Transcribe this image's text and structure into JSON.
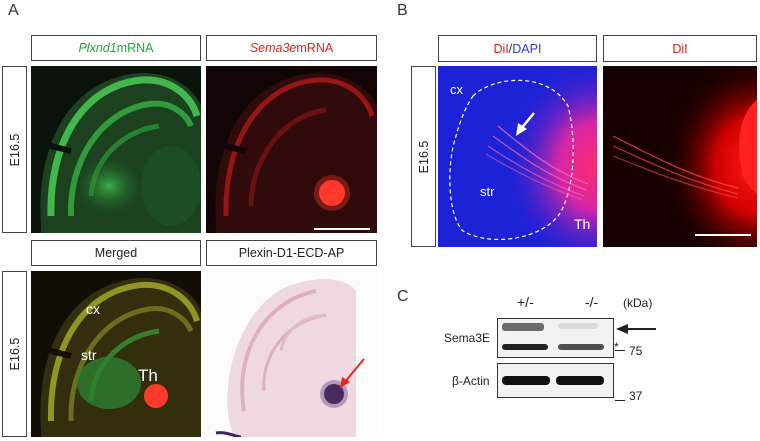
{
  "panels": {
    "A": "A",
    "B": "B",
    "C": "C"
  },
  "panelA": {
    "header_plxnd1_gene": "Plxnd1",
    "header_plxnd1_rest": " mRNA",
    "header_sema3e_gene": "Sema3e",
    "header_sema3e_rest": " mRNA",
    "header_merged": "Merged",
    "header_ap": "Plexin-D1-ECD-AP",
    "stage_top": "E16.5",
    "stage_bottom": "E16.5",
    "labels": {
      "cx": "cx",
      "str": "str",
      "th": "Th"
    }
  },
  "panelB": {
    "header_dii": "DiI",
    "header_sep": " / ",
    "header_dapi": "DAPI",
    "header_dii_only": "DiI",
    "stage": "E16.5",
    "labels": {
      "cx": "cx",
      "str": "str",
      "th": "Th"
    }
  },
  "panelC": {
    "col_het": "+/-",
    "col_ko": "-/-",
    "kda": "(kDa)",
    "row_sema3e": "Sema3E",
    "row_actin": "β-Actin",
    "marker_75": "75",
    "marker_37": "37",
    "asterisk": "*"
  },
  "colors": {
    "green": "#1faa3a",
    "red": "#e0201b",
    "blue": "#2b3bd0"
  }
}
